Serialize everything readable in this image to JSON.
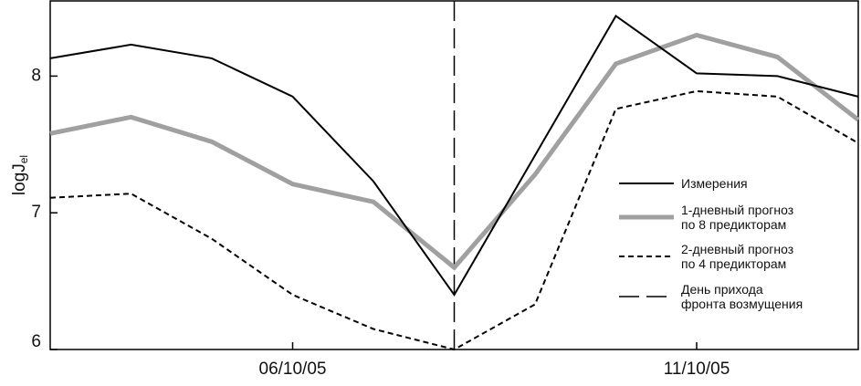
{
  "chart_data": {
    "type": "line",
    "y_label": "logJ",
    "y_label_sub": "el",
    "categories": [
      null,
      null,
      null,
      "06/10/05",
      null,
      null,
      null,
      null,
      "11/10/05",
      null,
      null
    ],
    "series": [
      {
        "name": "Измерения",
        "color": "#000000",
        "style": "solid",
        "width": 2,
        "values": [
          8.13,
          8.23,
          8.13,
          7.85,
          7.23,
          6.4,
          7.42,
          8.44,
          8.02,
          8.0,
          7.85
        ]
      },
      {
        "name": "1-дневный прогноз\nпо 8 предикторам",
        "color": "#a0a0a0",
        "style": "solid",
        "width": 5,
        "values": [
          7.58,
          7.7,
          7.52,
          7.21,
          7.08,
          6.6,
          7.28,
          8.09,
          8.3,
          8.14,
          7.68
        ]
      },
      {
        "name": "2-дневный прогноз\nпо 4 предикторам",
        "color": "#000000",
        "style": "dashed",
        "width": 2,
        "values": [
          7.11,
          7.14,
          6.81,
          6.4,
          6.15,
          6.0,
          6.33,
          7.76,
          7.89,
          7.85,
          7.51
        ]
      }
    ],
    "vline": {
      "name": "День прихода\nфронта возмущения",
      "category_index": 5,
      "color": "#000000"
    },
    "ylim": [
      6,
      8.55
    ],
    "yticks": [
      6,
      7,
      8
    ]
  }
}
